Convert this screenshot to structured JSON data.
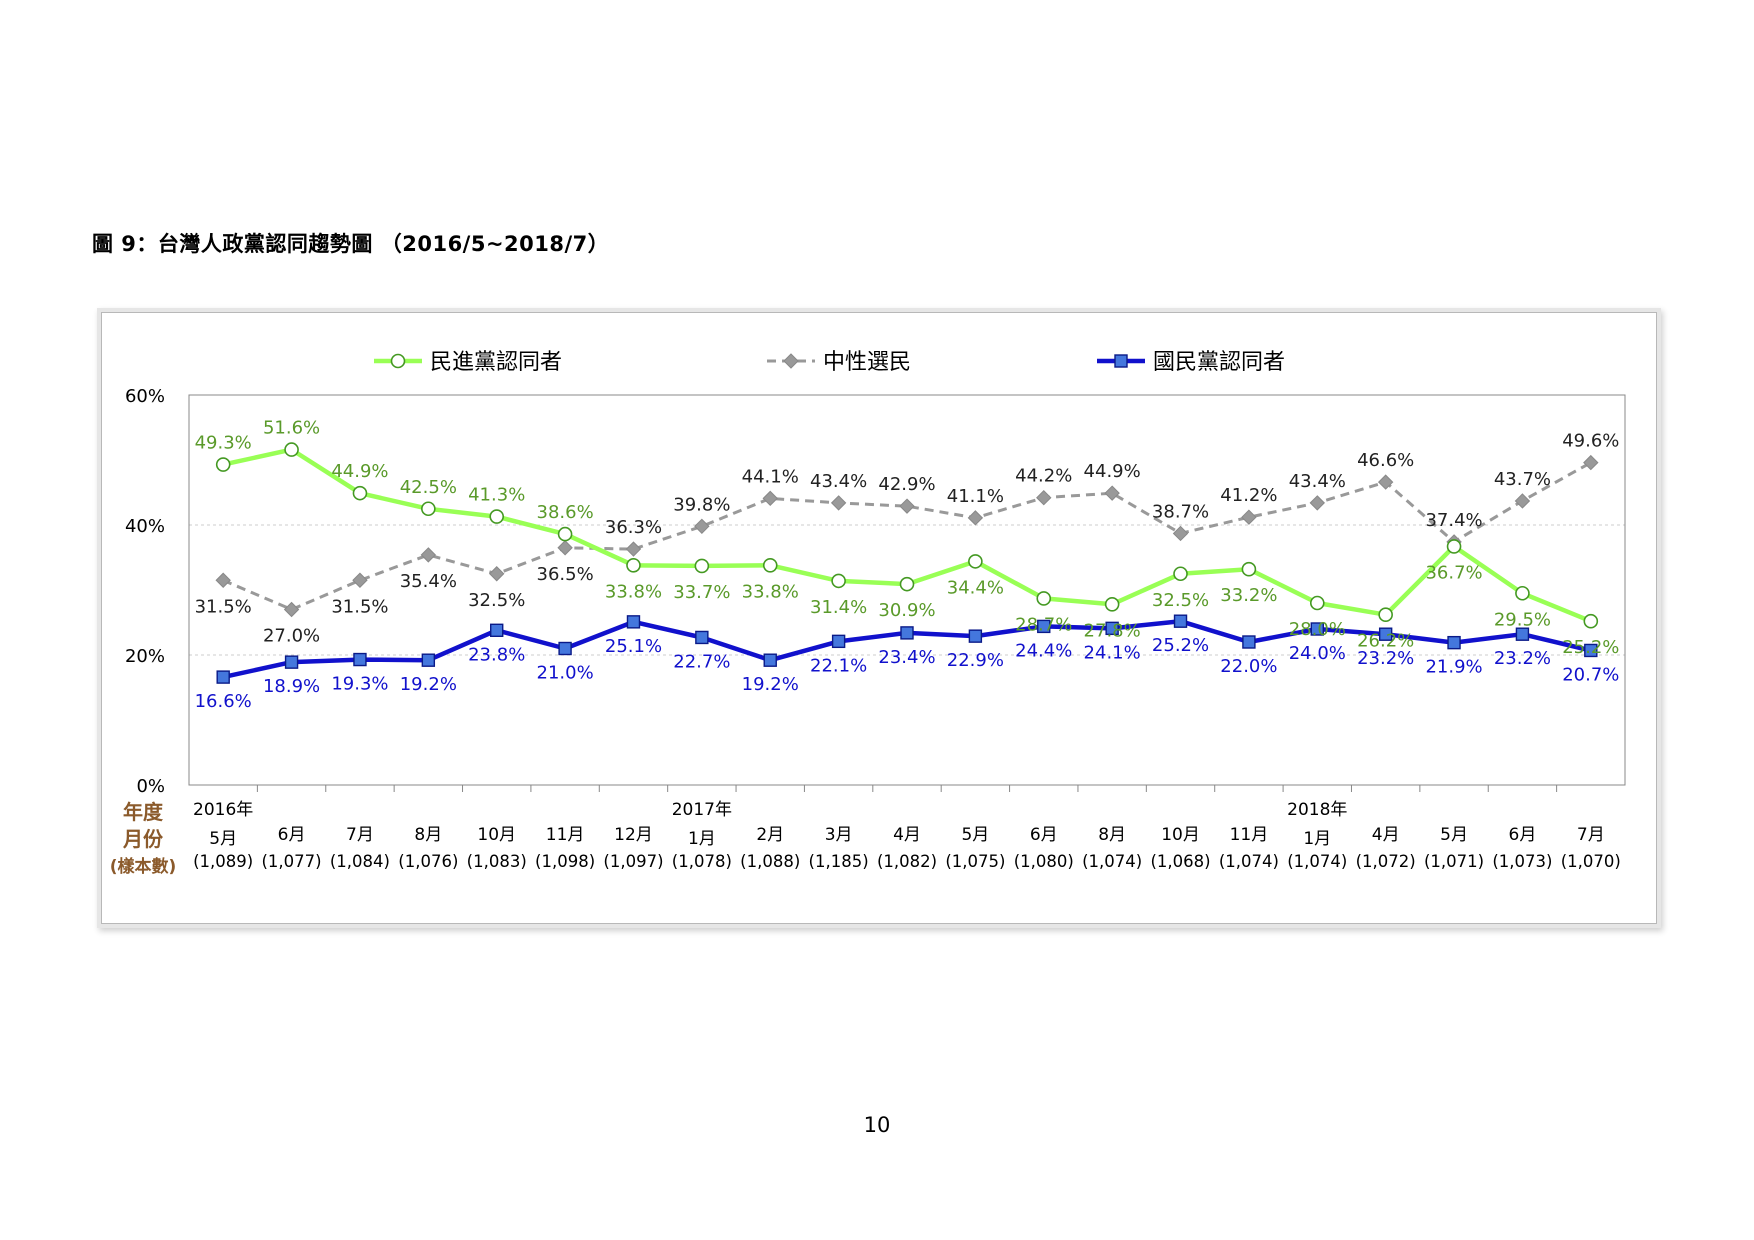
{
  "figure_title": "圖 9：台灣人政黨認同趨勢圖 （2016/5~2018/7）",
  "page_number": "10",
  "axis_header": [
    "年度",
    "月份",
    "(樣本數)"
  ],
  "colors": {
    "dpp": "#99ff55",
    "dpp_label": "#5a9a2a",
    "neutral": "#999999",
    "neutral_label": "#222222",
    "kmt": "#1111cc",
    "kmt_label": "#1111cc",
    "header_label": "#8b5a2b"
  },
  "chart_data": {
    "type": "line",
    "title": "",
    "xlabel": "",
    "ylabel": "",
    "ylim": [
      0,
      60
    ],
    "yticks": [
      "0%",
      "20%",
      "40%",
      "60%"
    ],
    "grid": "horizontal dashed",
    "legend_placement": "top",
    "years": [
      {
        "index": 0,
        "label": "2016年"
      },
      {
        "index": 7,
        "label": "2017年"
      },
      {
        "index": 16,
        "label": "2018年"
      }
    ],
    "categories": [
      "5月",
      "6月",
      "7月",
      "8月",
      "10月",
      "11月",
      "12月",
      "1月",
      "2月",
      "3月",
      "4月",
      "5月",
      "6月",
      "8月",
      "10月",
      "11月",
      "1月",
      "4月",
      "5月",
      "6月",
      "7月"
    ],
    "sample_sizes": [
      "(1,089)",
      "(1,077)",
      "(1,084)",
      "(1,076)",
      "(1,083)",
      "(1,098)",
      "(1,097)",
      "(1,078)",
      "(1,088)",
      "(1,185)",
      "(1,082)",
      "(1,075)",
      "(1,080)",
      "(1,074)",
      "(1,068)",
      "(1,074)",
      "(1,074)",
      "(1,072)",
      "(1,071)",
      "(1,073)",
      "(1,070)"
    ],
    "series": [
      {
        "name": "民進黨認同者",
        "key": "dpp",
        "values": [
          49.3,
          51.6,
          44.9,
          42.5,
          41.3,
          38.6,
          33.8,
          33.7,
          33.8,
          31.4,
          30.9,
          34.4,
          28.7,
          27.8,
          32.5,
          33.2,
          28.0,
          26.2,
          36.7,
          29.5,
          25.2
        ],
        "labels": [
          "49.3%",
          "51.6%",
          "44.9%",
          "42.5%",
          "41.3%",
          "38.6%",
          "33.8%",
          "33.7%",
          "33.8%",
          "31.4%",
          "30.9%",
          "34.4%",
          "28.7%",
          "27.8%",
          "32.5%",
          "33.2%",
          "28.0%",
          "26.2%",
          "36.7%",
          "29.5%",
          "25.2%"
        ]
      },
      {
        "name": "中性選民",
        "key": "neutral",
        "values": [
          31.5,
          27.0,
          31.5,
          35.4,
          32.5,
          36.5,
          36.3,
          39.8,
          44.1,
          43.4,
          42.9,
          41.1,
          44.2,
          44.9,
          38.7,
          41.2,
          43.4,
          46.6,
          37.4,
          43.7,
          49.6
        ],
        "labels": [
          "31.5%",
          "27.0%",
          "31.5%",
          "35.4%",
          "32.5%",
          "36.5%",
          "36.3%",
          "39.8%",
          "44.1%",
          "43.4%",
          "42.9%",
          "41.1%",
          "44.2%",
          "44.9%",
          "38.7%",
          "41.2%",
          "43.4%",
          "46.6%",
          "37.4%",
          "43.7%",
          "49.6%"
        ]
      },
      {
        "name": "國民黨認同者",
        "key": "kmt",
        "values": [
          16.6,
          18.9,
          19.3,
          19.2,
          23.8,
          21.0,
          25.1,
          22.7,
          19.2,
          22.1,
          23.4,
          22.9,
          24.4,
          24.1,
          25.2,
          22.0,
          24.0,
          23.2,
          21.9,
          23.2,
          20.7
        ],
        "labels": [
          "16.6%",
          "18.9%",
          "19.3%",
          "19.2%",
          "23.8%",
          "21.0%",
          "25.1%",
          "22.7%",
          "19.2%",
          "22.1%",
          "23.4%",
          "22.9%",
          "24.4%",
          "24.1%",
          "25.2%",
          "22.0%",
          "24.0%",
          "23.2%",
          "21.9%",
          "23.2%",
          "20.7%"
        ]
      }
    ]
  }
}
